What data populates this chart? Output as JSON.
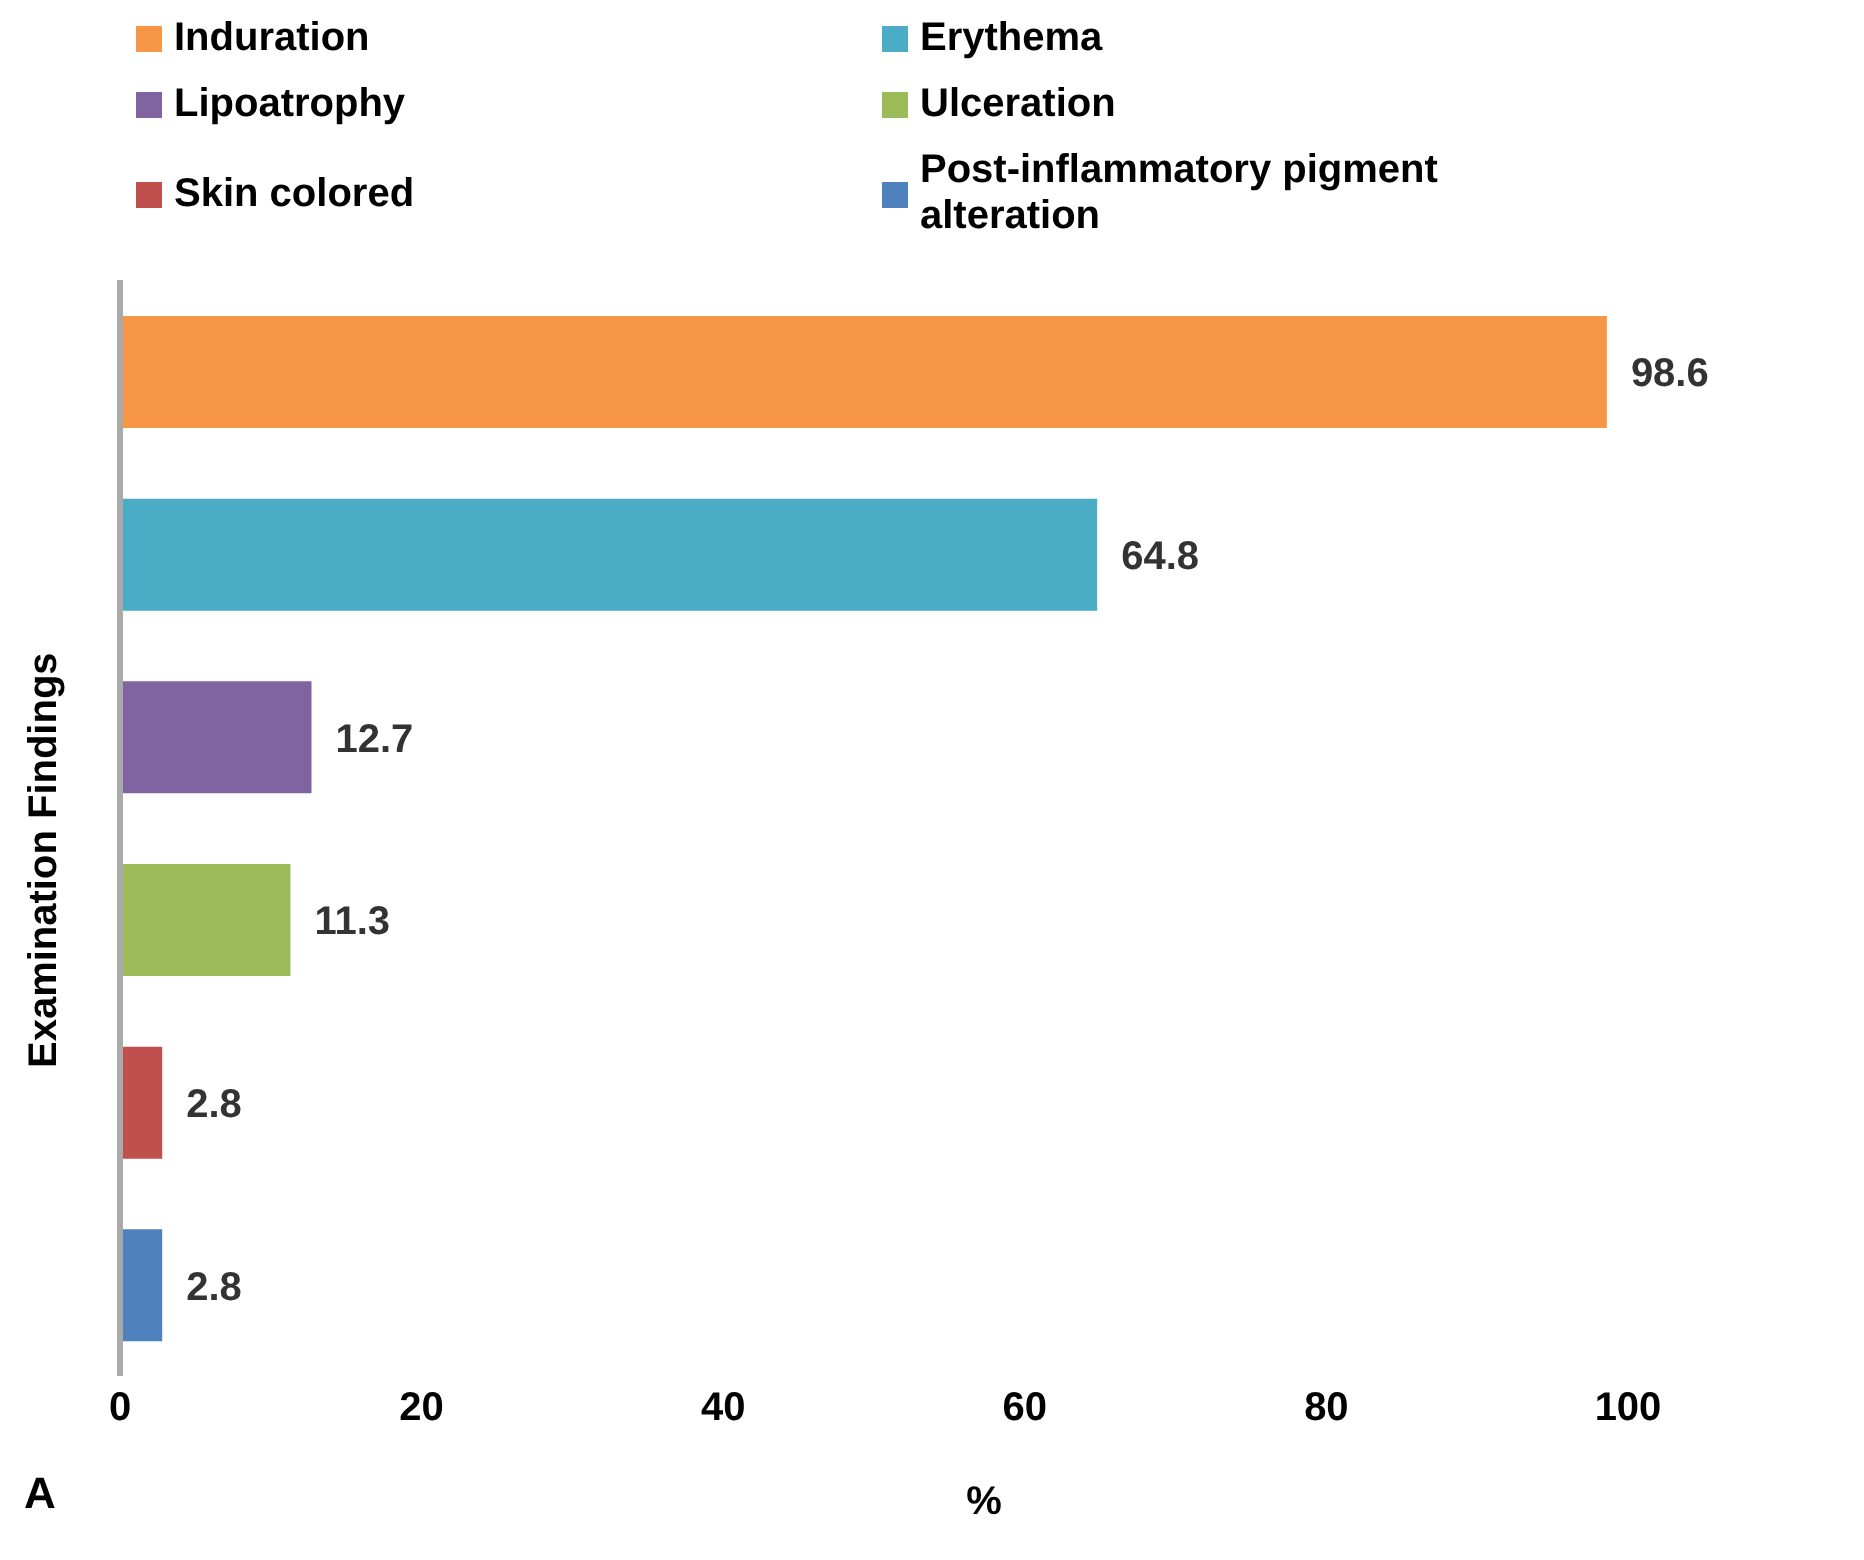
{
  "chart_data": {
    "type": "bar",
    "orientation": "horizontal",
    "stacked": true,
    "ylabel": "Examination Findings",
    "xlabel": "%",
    "categories": [
      null,
      null,
      null,
      null,
      null,
      null
    ],
    "series": [
      {
        "name": "Induration",
        "color": "#f79646",
        "values": [
          98.6,
          null,
          null,
          null,
          null,
          null
        ]
      },
      {
        "name": "Erythema",
        "color": "#4bacc6",
        "values": [
          null,
          64.8,
          null,
          null,
          null,
          null
        ]
      },
      {
        "name": "Lipoatrophy",
        "color": "#8064a2",
        "values": [
          null,
          null,
          12.7,
          null,
          null,
          null
        ]
      },
      {
        "name": "Ulceration",
        "color": "#9bbb59",
        "values": [
          null,
          null,
          null,
          11.3,
          null,
          null
        ]
      },
      {
        "name": "Skin colored",
        "color": "#c0504d",
        "values": [
          null,
          null,
          null,
          null,
          2.8,
          null
        ]
      },
      {
        "name": "Post-inflammatory pigment alteration",
        "color": "#4f81bd",
        "values": [
          null,
          null,
          null,
          null,
          null,
          2.8
        ]
      }
    ],
    "xlim": [
      0,
      100
    ],
    "xticks": [
      0,
      20,
      40,
      60,
      80,
      100
    ],
    "legend": "top",
    "data_labels": true,
    "tick_labels": "x",
    "annotations": [
      "A"
    ]
  }
}
